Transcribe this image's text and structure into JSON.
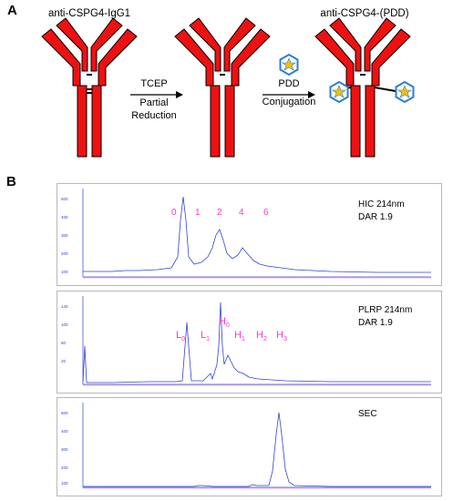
{
  "panel_a": {
    "letter": "A",
    "antibody_1": "anti-CSPG4-IgG1",
    "arrow_1_top": "TCEP",
    "arrow_1_mid": "Partial",
    "arrow_1_bot": "Reduction",
    "arrow_2_top": "PDD",
    "arrow_2_mid": "Conjugation",
    "antibody_3": "anti-CSPG4-(PDD)",
    "colors": {
      "antibody": "#ee1111",
      "drug": "#2a7fd4",
      "star": "#f2c200"
    }
  },
  "panel_b": {
    "letter": "B",
    "hic": {
      "title_line1": "HIC 214nm",
      "title_line2": "DAR 1.9",
      "peak_labels": [
        "0",
        "1",
        "2",
        "4",
        "6"
      ],
      "label_color": "#ff33cc"
    },
    "plrp": {
      "title_line1": "PLRP 214nm",
      "title_line2": "DAR 1.9",
      "peak_labels": [
        {
          "main": "L",
          "sub": "0"
        },
        {
          "main": "L",
          "sub": "1"
        },
        {
          "main": "H",
          "sub": "0"
        },
        {
          "main": "H",
          "sub": "1"
        },
        {
          "main": "H",
          "sub": "2"
        },
        {
          "main": "H",
          "sub": "3"
        }
      ],
      "label_color": "#ff33cc"
    },
    "sec": {
      "title": "SEC"
    }
  }
}
